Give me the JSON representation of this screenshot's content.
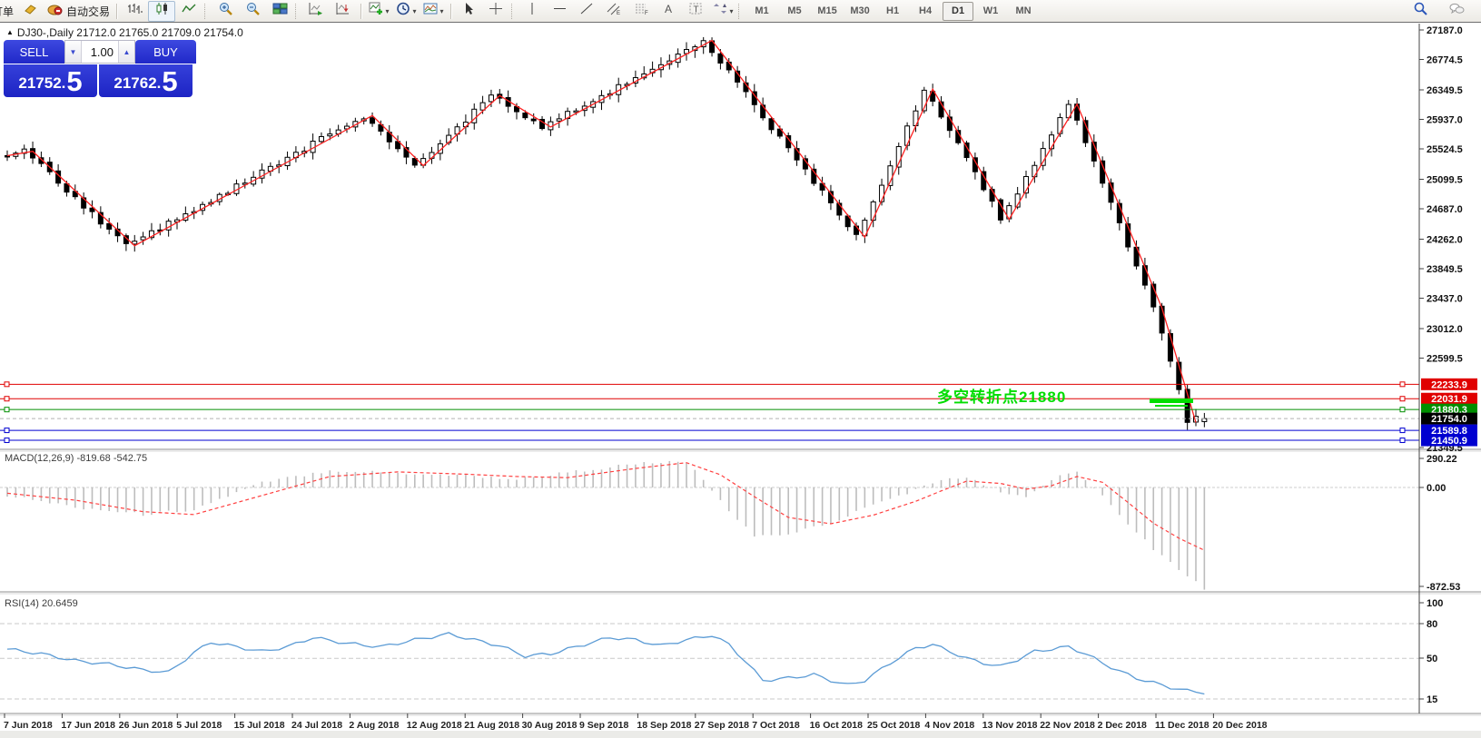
{
  "toolbar": {
    "order_label": "订单",
    "autotrading_label": "自动交易",
    "groups": [
      {
        "name": "chart-type",
        "items": [
          {
            "name": "bar-chart",
            "type": "bars"
          },
          {
            "name": "candlestick-chart",
            "type": "candles",
            "active": true
          },
          {
            "name": "line-chart",
            "type": "linechart"
          }
        ]
      },
      {
        "name": "zoom",
        "items": [
          {
            "name": "zoom-in",
            "type": "zoomin"
          },
          {
            "name": "zoom-out",
            "type": "zoomout"
          },
          {
            "name": "tile-windows",
            "type": "tile"
          }
        ]
      },
      {
        "name": "scroll",
        "items": [
          {
            "name": "auto-scroll",
            "type": "scroll"
          },
          {
            "name": "chart-shift",
            "type": "shift"
          }
        ]
      },
      {
        "name": "insert",
        "items": [
          {
            "name": "indicators",
            "type": "indadd",
            "dropdown": true
          },
          {
            "name": "periods",
            "type": "clock",
            "dropdown": true
          },
          {
            "name": "templates",
            "type": "template",
            "dropdown": true
          }
        ]
      },
      {
        "name": "pointer",
        "items": [
          {
            "name": "cursor",
            "type": "cursor"
          },
          {
            "name": "crosshair",
            "type": "cross"
          }
        ]
      },
      {
        "name": "drawing",
        "items": [
          {
            "name": "vertical-line",
            "type": "vline"
          },
          {
            "name": "horizontal-line",
            "type": "hline"
          },
          {
            "name": "trend-line",
            "type": "tline"
          },
          {
            "name": "equidistant-channel",
            "type": "channel"
          },
          {
            "name": "fibonacci",
            "type": "fibo"
          },
          {
            "name": "text",
            "type": "textA"
          },
          {
            "name": "text-label",
            "type": "textT"
          },
          {
            "name": "arrows",
            "type": "shapes",
            "dropdown": true
          }
        ]
      }
    ],
    "timeframes": [
      {
        "label": "M1"
      },
      {
        "label": "M5"
      },
      {
        "label": "M15"
      },
      {
        "label": "M30"
      },
      {
        "label": "H1"
      },
      {
        "label": "H4"
      },
      {
        "label": "D1",
        "active": true
      },
      {
        "label": "W1"
      },
      {
        "label": "MN"
      }
    ],
    "right_items": [
      {
        "name": "search",
        "type": "magnifier"
      },
      {
        "name": "chat",
        "type": "chat"
      }
    ]
  },
  "title": {
    "text": "DJ30-,Daily  21712.0 21765.0 21709.0 21754.0"
  },
  "trade": {
    "sell_label": "SELL",
    "buy_label": "BUY",
    "volume": "1.00",
    "sell_price": "21752.5",
    "buy_price": "21762.5"
  },
  "annotation": {
    "text": "多空转折点21880",
    "color": "#00dd00"
  },
  "macd_panel": {
    "label": "MACD(12,26,9) -819.68 -542.75"
  },
  "rsi_panel": {
    "label": "RSI(14) 20.6459"
  },
  "chart_data": {
    "type": "candlestick",
    "symbol": "DJ30-",
    "timeframe": "Daily",
    "ohlc_display": {
      "open": 21712.0,
      "high": 21765.0,
      "low": 21709.0,
      "close": 21754.0
    },
    "price_axis": [
      27187.0,
      26774.5,
      26349.5,
      25937.0,
      25524.5,
      25099.5,
      24687.0,
      24262.0,
      23849.5,
      23437.0,
      23012.0,
      22599.5,
      21349.5
    ],
    "num_candles": 142,
    "zigzag": [
      [
        0,
        25430
      ],
      [
        3,
        25490
      ],
      [
        15,
        24170
      ],
      [
        43,
        25990
      ],
      [
        49,
        25290
      ],
      [
        58,
        26270
      ],
      [
        64,
        25830
      ],
      [
        83,
        27040
      ],
      [
        101,
        24290
      ],
      [
        109,
        26360
      ],
      [
        118,
        24540
      ],
      [
        126,
        26150
      ],
      [
        136,
        23300
      ],
      [
        140,
        21700
      ],
      [
        141.5,
        21790
      ]
    ],
    "last_close": 21754.0,
    "price_lines": [
      {
        "value": 22233.9,
        "label": "22233.9",
        "color": "#e00000",
        "style": "solid"
      },
      {
        "value": 22031.9,
        "label": "22031.9",
        "color": "#e00000",
        "style": "solid"
      },
      {
        "value": 21880.3,
        "label": "21880.3",
        "color": "#008f00",
        "style": "solid"
      },
      {
        "value": 21754.0,
        "label": "21754.0",
        "color": "#b4b4b4",
        "style": "dash",
        "label_bg": "#000000"
      },
      {
        "value": 21589.8,
        "label": "21589.8",
        "color": "#0000d0",
        "style": "solid"
      },
      {
        "value": 21450.9,
        "label": "21450.9",
        "color": "#0000d0",
        "style": "solid"
      }
    ],
    "macd": {
      "params": "12,26,9",
      "value": -819.68,
      "signal_value": -542.75,
      "axis": [
        "290.22",
        "0.00",
        "-872.53"
      ],
      "anchors": [
        [
          0,
          -70,
          -50
        ],
        [
          8,
          -170,
          -110
        ],
        [
          16,
          -235,
          -210
        ],
        [
          22,
          -190,
          -235
        ],
        [
          30,
          40,
          -70
        ],
        [
          38,
          150,
          95
        ],
        [
          46,
          125,
          135
        ],
        [
          54,
          105,
          115
        ],
        [
          60,
          70,
          95
        ],
        [
          66,
          130,
          85
        ],
        [
          74,
          205,
          165
        ],
        [
          80,
          225,
          215
        ],
        [
          84,
          -120,
          110
        ],
        [
          88,
          -430,
          -80
        ],
        [
          92,
          -400,
          -260
        ],
        [
          97,
          -310,
          -315
        ],
        [
          102,
          -150,
          -240
        ],
        [
          107,
          -20,
          -120
        ],
        [
          110,
          60,
          -30
        ],
        [
          113,
          95,
          55
        ],
        [
          117,
          -50,
          35
        ],
        [
          120,
          -80,
          -15
        ],
        [
          123,
          70,
          15
        ],
        [
          126,
          140,
          95
        ],
        [
          129,
          -60,
          45
        ],
        [
          132,
          -310,
          -130
        ],
        [
          135,
          -530,
          -310
        ],
        [
          138,
          -710,
          -440
        ],
        [
          141,
          -875,
          -545
        ]
      ]
    },
    "rsi": {
      "period": 14,
      "value": 20.6459,
      "axis": [
        "100",
        "80",
        "50",
        "15"
      ],
      "levels": [
        80,
        50,
        15
      ],
      "anchors": [
        [
          0,
          58
        ],
        [
          4,
          54
        ],
        [
          8,
          48
        ],
        [
          12,
          45
        ],
        [
          16,
          40
        ],
        [
          19,
          38
        ],
        [
          22,
          55
        ],
        [
          24,
          64
        ],
        [
          27,
          60
        ],
        [
          30,
          56
        ],
        [
          33,
          60
        ],
        [
          36,
          68
        ],
        [
          40,
          63
        ],
        [
          44,
          60
        ],
        [
          48,
          66
        ],
        [
          52,
          71
        ],
        [
          55,
          66
        ],
        [
          58,
          61
        ],
        [
          61,
          52
        ],
        [
          64,
          54
        ],
        [
          68,
          62
        ],
        [
          71,
          68
        ],
        [
          74,
          66
        ],
        [
          77,
          61
        ],
        [
          80,
          66
        ],
        [
          83,
          70
        ],
        [
          85,
          62
        ],
        [
          87,
          47
        ],
        [
          89,
          31
        ],
        [
          92,
          33
        ],
        [
          95,
          36
        ],
        [
          97,
          31
        ],
        [
          99,
          27
        ],
        [
          101,
          31
        ],
        [
          104,
          46
        ],
        [
          107,
          59
        ],
        [
          109,
          62
        ],
        [
          111,
          56
        ],
        [
          113,
          50
        ],
        [
          115,
          46
        ],
        [
          117,
          43
        ],
        [
          119,
          49
        ],
        [
          121,
          56
        ],
        [
          123,
          58
        ],
        [
          125,
          60
        ],
        [
          127,
          54
        ],
        [
          129,
          46
        ],
        [
          131,
          39
        ],
        [
          133,
          33
        ],
        [
          135,
          29
        ],
        [
          137,
          25
        ],
        [
          139,
          22
        ],
        [
          141,
          20.6
        ]
      ]
    },
    "dates": [
      "7 Jun 2018",
      "17 Jun 2018",
      "26 Jun 2018",
      "5 Jul 2018",
      "15 Jul 2018",
      "24 Jul 2018",
      "2 Aug 2018",
      "12 Aug 2018",
      "21 Aug 2018",
      "30 Aug 2018",
      "9 Sep 2018",
      "18 Sep 2018",
      "27 Sep 2018",
      "7 Oct 2018",
      "16 Oct 2018",
      "25 Oct 2018",
      "4 Nov 2018",
      "13 Nov 2018",
      "22 Nov 2018",
      "2 Dec 2018",
      "11 Dec 2018",
      "20 Dec 2018"
    ]
  }
}
